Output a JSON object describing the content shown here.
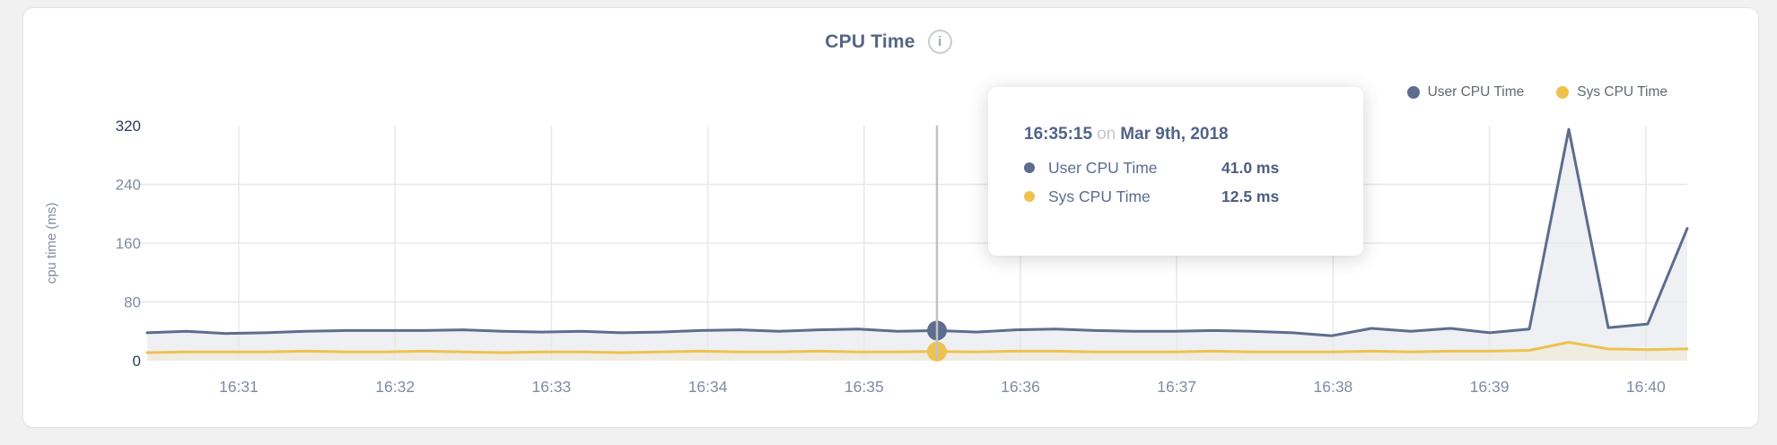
{
  "title": {
    "text": "CPU Time",
    "info_icon_glyph": "i"
  },
  "legend": [
    {
      "label": "User CPU Time",
      "color": "#5d6d8e"
    },
    {
      "label": "Sys CPU Time",
      "color": "#edc24f"
    }
  ],
  "tooltip": {
    "time": "16:35:15",
    "connector": "on",
    "date": "Mar 9th, 2018",
    "rows": [
      {
        "label": "User CPU Time",
        "value": "41.0 ms",
        "color": "#5d6d8e"
      },
      {
        "label": "Sys CPU Time",
        "value": "12.5 ms",
        "color": "#edc24f"
      }
    ]
  },
  "chart_data": {
    "type": "area",
    "title": "CPU Time",
    "xlabel": "",
    "ylabel": "cpu time (ms)",
    "ylim": [
      0,
      320
    ],
    "yticks": [
      0,
      80,
      160,
      240,
      320
    ],
    "xticks": [
      "16:31",
      "16:32",
      "16:33",
      "16:34",
      "16:35",
      "16:36",
      "16:37",
      "16:38",
      "16:39",
      "16:40"
    ],
    "grid": true,
    "legend_position": "top-right",
    "sample_interval_seconds": 15,
    "series": [
      {
        "name": "User CPU Time",
        "color": "#5d6d8e",
        "fill": "#eef0f4",
        "values": [
          38,
          40,
          37,
          38,
          40,
          41,
          41,
          41,
          42,
          40,
          39,
          40,
          38,
          39,
          41,
          42,
          40,
          42,
          43,
          40,
          41,
          39,
          42,
          43,
          41,
          40,
          40,
          41,
          40,
          38,
          34,
          44,
          40,
          44,
          38,
          43,
          315,
          45,
          50,
          180
        ]
      },
      {
        "name": "Sys CPU Time",
        "color": "#edc24f",
        "fill": "#f0ece1",
        "values": [
          11,
          12,
          12,
          12,
          13,
          12,
          12,
          13,
          12,
          11,
          12,
          12,
          11,
          12,
          13,
          12,
          12,
          13,
          12,
          12,
          12.5,
          12,
          13,
          13,
          12,
          12,
          12,
          13,
          12,
          12,
          12,
          13,
          12,
          13,
          13,
          14,
          25,
          16,
          15,
          16
        ]
      }
    ],
    "highlight": {
      "index": 20,
      "time": "16:35:15",
      "date": "Mar 9th, 2018",
      "user_cpu_ms": 41.0,
      "sys_cpu_ms": 12.5
    }
  }
}
